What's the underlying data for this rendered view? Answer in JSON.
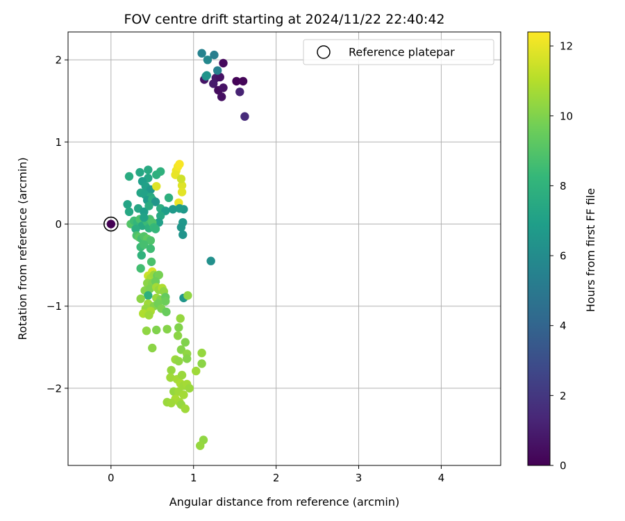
{
  "chart_data": {
    "type": "scatter",
    "title": "FOV centre drift starting at 2024/11/22 22:40:42",
    "xlabel": "Angular distance from reference (arcmin)",
    "ylabel": "Rotation from reference (arcmin)",
    "xlim": [
      -0.52,
      4.72
    ],
    "ylim": [
      -2.94,
      2.34
    ],
    "xticks": [
      0,
      1,
      2,
      3,
      4
    ],
    "yticks": [
      -2,
      -1,
      0,
      1,
      2
    ],
    "xtick_labels": [
      "0",
      "1",
      "2",
      "3",
      "4"
    ],
    "ytick_labels": [
      "−2",
      "−1",
      "0",
      "1",
      "2"
    ],
    "grid": true,
    "legend": {
      "position": "top-right",
      "entries": [
        {
          "label": "Reference platepar",
          "marker": "hollow-circle"
        }
      ]
    },
    "reference_point": {
      "x": 0,
      "y": 0
    },
    "colorbar": {
      "label": "Hours from first FF file",
      "colormap": "viridis",
      "range": [
        0,
        12.4
      ],
      "ticks": [
        0,
        2,
        4,
        6,
        8,
        10,
        12
      ],
      "tick_labels": [
        "0",
        "2",
        "4",
        "6",
        "8",
        "10",
        "12"
      ]
    },
    "colormap_stops": [
      "#440154",
      "#482878",
      "#3e4989",
      "#31688e",
      "#26828e",
      "#1f9e89",
      "#35b779",
      "#6ece58",
      "#b5de2b",
      "#fde725"
    ],
    "points": [
      {
        "x": 1.62,
        "y": 1.31,
        "c": 1.5
      },
      {
        "x": 1.56,
        "y": 1.61,
        "c": 1.2
      },
      {
        "x": 1.36,
        "y": 1.96,
        "c": 0.3
      },
      {
        "x": 1.52,
        "y": 1.74,
        "c": 0.1
      },
      {
        "x": 1.6,
        "y": 1.74,
        "c": 0.2
      },
      {
        "x": 1.3,
        "y": 1.63,
        "c": 0.4
      },
      {
        "x": 1.34,
        "y": 1.55,
        "c": 0.5
      },
      {
        "x": 1.36,
        "y": 1.66,
        "c": 0.6
      },
      {
        "x": 1.27,
        "y": 1.78,
        "c": 0.8
      },
      {
        "x": 1.32,
        "y": 1.79,
        "c": 0.6
      },
      {
        "x": 1.24,
        "y": 1.71,
        "c": 0.9
      },
      {
        "x": 1.13,
        "y": 1.76,
        "c": 0.7
      },
      {
        "x": 1.1,
        "y": 2.08,
        "c": 5.5
      },
      {
        "x": 1.17,
        "y": 2.0,
        "c": 5.8
      },
      {
        "x": 1.25,
        "y": 2.06,
        "c": 5.3
      },
      {
        "x": 1.29,
        "y": 1.87,
        "c": 5.4
      },
      {
        "x": 1.15,
        "y": 1.8,
        "c": 6.0
      },
      {
        "x": 1.16,
        "y": 1.81,
        "c": 6.4
      },
      {
        "x": 0.22,
        "y": 0.58,
        "c": 7.6
      },
      {
        "x": 0.35,
        "y": 0.63,
        "c": 7.4
      },
      {
        "x": 0.45,
        "y": 0.66,
        "c": 7.5
      },
      {
        "x": 0.45,
        "y": 0.56,
        "c": 7.3
      },
      {
        "x": 0.38,
        "y": 0.52,
        "c": 6.9
      },
      {
        "x": 0.55,
        "y": 0.6,
        "c": 7.8
      },
      {
        "x": 0.6,
        "y": 0.64,
        "c": 7.9
      },
      {
        "x": 0.42,
        "y": 0.46,
        "c": 7.0
      },
      {
        "x": 0.48,
        "y": 0.42,
        "c": 6.6
      },
      {
        "x": 0.36,
        "y": 0.38,
        "c": 7.2
      },
      {
        "x": 0.41,
        "y": 0.36,
        "c": 7.1
      },
      {
        "x": 0.48,
        "y": 0.33,
        "c": 7.5
      },
      {
        "x": 0.44,
        "y": 0.29,
        "c": 6.8
      },
      {
        "x": 0.5,
        "y": 0.3,
        "c": 7.7
      },
      {
        "x": 0.54,
        "y": 0.27,
        "c": 6.5
      },
      {
        "x": 0.7,
        "y": 0.32,
        "c": 7.8
      },
      {
        "x": 0.55,
        "y": 0.46,
        "c": 11.8
      },
      {
        "x": 0.79,
        "y": 0.65,
        "c": 12.1
      },
      {
        "x": 0.81,
        "y": 0.7,
        "c": 12.2
      },
      {
        "x": 0.83,
        "y": 0.73,
        "c": 12.3
      },
      {
        "x": 0.78,
        "y": 0.6,
        "c": 12.0
      },
      {
        "x": 0.86,
        "y": 0.47,
        "c": 11.8
      },
      {
        "x": 0.86,
        "y": 0.39,
        "c": 11.9
      },
      {
        "x": 0.82,
        "y": 0.26,
        "c": 12.1
      },
      {
        "x": 0.85,
        "y": 0.55,
        "c": 11.5
      },
      {
        "x": 0.2,
        "y": 0.24,
        "c": 7.2
      },
      {
        "x": 0.22,
        "y": 0.15,
        "c": 7.4
      },
      {
        "x": 0.33,
        "y": 0.19,
        "c": 7.3
      },
      {
        "x": 0.4,
        "y": 0.15,
        "c": 6.9
      },
      {
        "x": 0.46,
        "y": 0.22,
        "c": 7.6
      },
      {
        "x": 0.6,
        "y": 0.19,
        "c": 7.7
      },
      {
        "x": 0.66,
        "y": 0.16,
        "c": 6.9
      },
      {
        "x": 0.75,
        "y": 0.18,
        "c": 6.7
      },
      {
        "x": 0.88,
        "y": 0.18,
        "c": 6.6
      },
      {
        "x": 0.83,
        "y": 0.19,
        "c": 6.8
      },
      {
        "x": 0.87,
        "y": 0.02,
        "c": 6.6
      },
      {
        "x": 0.85,
        "y": -0.04,
        "c": 6.5
      },
      {
        "x": 0.87,
        "y": -0.13,
        "c": 6.4
      },
      {
        "x": 1.21,
        "y": -0.45,
        "c": 6.2
      },
      {
        "x": 0.6,
        "y": 0.1,
        "c": 7.4
      },
      {
        "x": 0.58,
        "y": 0.02,
        "c": 7.0
      },
      {
        "x": 0.24,
        "y": 0.0,
        "c": 9.0
      },
      {
        "x": 0.28,
        "y": 0.04,
        "c": 8.5
      },
      {
        "x": 0.32,
        "y": 0.02,
        "c": 8.2
      },
      {
        "x": 0.35,
        "y": 0.06,
        "c": 8.8
      },
      {
        "x": 0.38,
        "y": -0.02,
        "c": 7.5
      },
      {
        "x": 0.42,
        "y": 0.05,
        "c": 8.1
      },
      {
        "x": 0.44,
        "y": 0.02,
        "c": 8.4
      },
      {
        "x": 0.46,
        "y": -0.05,
        "c": 7.9
      },
      {
        "x": 0.47,
        "y": 0.06,
        "c": 8.7
      },
      {
        "x": 0.5,
        "y": 0.02,
        "c": 8.9
      },
      {
        "x": 0.52,
        "y": -0.04,
        "c": 8.3
      },
      {
        "x": 0.4,
        "y": 0.08,
        "c": 7.1
      },
      {
        "x": 0.3,
        "y": -0.06,
        "c": 7.7
      },
      {
        "x": 0.54,
        "y": -0.06,
        "c": 8.2
      },
      {
        "x": 0.31,
        "y": -0.14,
        "c": 8.8
      },
      {
        "x": 0.34,
        "y": -0.16,
        "c": 9.2
      },
      {
        "x": 0.37,
        "y": -0.18,
        "c": 8.6
      },
      {
        "x": 0.4,
        "y": -0.15,
        "c": 9.0
      },
      {
        "x": 0.44,
        "y": -0.18,
        "c": 9.3
      },
      {
        "x": 0.48,
        "y": -0.2,
        "c": 8.9
      },
      {
        "x": 0.36,
        "y": -0.28,
        "c": 8.4
      },
      {
        "x": 0.4,
        "y": -0.25,
        "c": 8.7
      },
      {
        "x": 0.37,
        "y": -0.38,
        "c": 8.0
      },
      {
        "x": 0.48,
        "y": -0.3,
        "c": 8.5
      },
      {
        "x": 0.49,
        "y": -0.46,
        "c": 8.8
      },
      {
        "x": 0.36,
        "y": -0.54,
        "c": 8.6
      },
      {
        "x": 0.5,
        "y": -0.58,
        "c": 11.7
      },
      {
        "x": 0.45,
        "y": -0.63,
        "c": 11.4
      },
      {
        "x": 0.48,
        "y": -0.66,
        "c": 10.8
      },
      {
        "x": 0.52,
        "y": -0.62,
        "c": 10.5
      },
      {
        "x": 0.56,
        "y": -0.63,
        "c": 9.5
      },
      {
        "x": 0.58,
        "y": -0.62,
        "c": 9.8
      },
      {
        "x": 0.44,
        "y": -0.72,
        "c": 10.2
      },
      {
        "x": 0.5,
        "y": -0.72,
        "c": 10.0
      },
      {
        "x": 0.54,
        "y": -0.7,
        "c": 9.6
      },
      {
        "x": 0.41,
        "y": -0.81,
        "c": 10.1
      },
      {
        "x": 0.47,
        "y": -0.79,
        "c": 9.9
      },
      {
        "x": 0.55,
        "y": -0.77,
        "c": 10.7
      },
      {
        "x": 0.58,
        "y": -0.8,
        "c": 10.4
      },
      {
        "x": 0.62,
        "y": -0.78,
        "c": 10.9
      },
      {
        "x": 0.64,
        "y": -0.82,
        "c": 10.3
      },
      {
        "x": 0.45,
        "y": -0.87,
        "c": 7.8
      },
      {
        "x": 0.36,
        "y": -0.91,
        "c": 10.2
      },
      {
        "x": 0.55,
        "y": -0.9,
        "c": 10.5
      },
      {
        "x": 0.6,
        "y": -0.92,
        "c": 10.0
      },
      {
        "x": 0.66,
        "y": -0.89,
        "c": 9.4
      },
      {
        "x": 0.66,
        "y": -0.94,
        "c": 9.6
      },
      {
        "x": 0.88,
        "y": -0.9,
        "c": 6.5
      },
      {
        "x": 0.93,
        "y": -0.87,
        "c": 10.3
      },
      {
        "x": 0.45,
        "y": -0.97,
        "c": 10.6
      },
      {
        "x": 0.52,
        "y": -1.0,
        "c": 10.1
      },
      {
        "x": 0.57,
        "y": -0.97,
        "c": 9.7
      },
      {
        "x": 0.42,
        "y": -1.03,
        "c": 10.4
      },
      {
        "x": 0.48,
        "y": -1.06,
        "c": 10.8
      },
      {
        "x": 0.61,
        "y": -1.03,
        "c": 9.9
      },
      {
        "x": 0.67,
        "y": -1.07,
        "c": 9.5
      },
      {
        "x": 0.39,
        "y": -1.09,
        "c": 10.9
      },
      {
        "x": 0.46,
        "y": -1.11,
        "c": 10.6
      },
      {
        "x": 0.43,
        "y": -1.3,
        "c": 10.3
      },
      {
        "x": 0.55,
        "y": -1.29,
        "c": 10.0
      },
      {
        "x": 0.68,
        "y": -1.28,
        "c": 10.1
      },
      {
        "x": 0.84,
        "y": -1.15,
        "c": 10.4
      },
      {
        "x": 0.82,
        "y": -1.26,
        "c": 10.0
      },
      {
        "x": 0.81,
        "y": -1.36,
        "c": 10.2
      },
      {
        "x": 0.9,
        "y": -1.44,
        "c": 10.0
      },
      {
        "x": 0.5,
        "y": -1.51,
        "c": 10.2
      },
      {
        "x": 0.85,
        "y": -1.53,
        "c": 10.1
      },
      {
        "x": 0.92,
        "y": -1.58,
        "c": 10.3
      },
      {
        "x": 0.92,
        "y": -1.64,
        "c": 10.1
      },
      {
        "x": 1.1,
        "y": -1.57,
        "c": 10.4
      },
      {
        "x": 1.1,
        "y": -1.7,
        "c": 10.2
      },
      {
        "x": 0.78,
        "y": -1.65,
        "c": 10.5
      },
      {
        "x": 0.82,
        "y": -1.67,
        "c": 10.3
      },
      {
        "x": 1.03,
        "y": -1.79,
        "c": 10.6
      },
      {
        "x": 0.73,
        "y": -1.78,
        "c": 10.4
      },
      {
        "x": 0.72,
        "y": -1.87,
        "c": 10.6
      },
      {
        "x": 0.8,
        "y": -1.89,
        "c": 10.7
      },
      {
        "x": 0.86,
        "y": -1.84,
        "c": 10.5
      },
      {
        "x": 0.84,
        "y": -1.94,
        "c": 10.8
      },
      {
        "x": 0.88,
        "y": -1.97,
        "c": 10.6
      },
      {
        "x": 0.92,
        "y": -1.95,
        "c": 10.7
      },
      {
        "x": 0.95,
        "y": -2.0,
        "c": 10.5
      },
      {
        "x": 0.76,
        "y": -2.04,
        "c": 10.4
      },
      {
        "x": 0.82,
        "y": -2.04,
        "c": 10.6
      },
      {
        "x": 0.88,
        "y": -2.08,
        "c": 10.7
      },
      {
        "x": 0.78,
        "y": -2.13,
        "c": 10.8
      },
      {
        "x": 0.68,
        "y": -2.17,
        "c": 10.5
      },
      {
        "x": 0.73,
        "y": -2.18,
        "c": 10.6
      },
      {
        "x": 0.83,
        "y": -2.17,
        "c": 10.7
      },
      {
        "x": 0.85,
        "y": -2.2,
        "c": 10.4
      },
      {
        "x": 0.9,
        "y": -2.25,
        "c": 10.6
      },
      {
        "x": 1.12,
        "y": -2.63,
        "c": 10.3
      },
      {
        "x": 1.08,
        "y": -2.7,
        "c": 10.4
      },
      {
        "x": 0.0,
        "y": 0.0,
        "c": 0.0
      }
    ]
  }
}
